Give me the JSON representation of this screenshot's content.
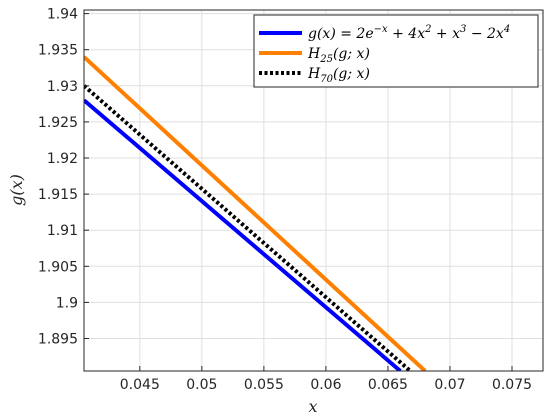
{
  "chart_data": {
    "type": "line",
    "xlabel": "x",
    "ylabel": "g(x)",
    "xlim": [
      0.0405,
      0.0775
    ],
    "ylim": [
      1.8905,
      1.9405
    ],
    "xticks": [
      0.045,
      0.05,
      0.055,
      0.06,
      0.065,
      0.07,
      0.075
    ],
    "xtick_labels": [
      "0.045",
      "0.05",
      "0.055",
      "0.06",
      "0.065",
      "0.07",
      "0.075"
    ],
    "yticks": [
      1.895,
      1.9,
      1.905,
      1.91,
      1.915,
      1.92,
      1.925,
      1.93,
      1.935,
      1.94
    ],
    "ytick_labels": [
      "1.895",
      "1.9",
      "1.905",
      "1.91",
      "1.915",
      "1.92",
      "1.925",
      "1.93",
      "1.935",
      "1.94"
    ],
    "grid": true,
    "legend_position": "top-right",
    "series": [
      {
        "name": "g(x) = 2e^{-x} + 4x^2 + x^3 - 2x^4",
        "color": "#0000ff",
        "dash": "solid",
        "x": [
          0.0405,
          0.066
        ],
        "y": [
          1.928,
          1.8905
        ]
      },
      {
        "name": "H_25(g;x)",
        "color": "#ff8000",
        "dash": "solid",
        "x": [
          0.0405,
          0.068
        ],
        "y": [
          1.934,
          1.8905
        ]
      },
      {
        "name": "H_70(g;x)",
        "color": "#000000",
        "dash": "dotted",
        "x": [
          0.0405,
          0.0668
        ],
        "y": [
          1.93,
          1.8905
        ]
      }
    ]
  }
}
